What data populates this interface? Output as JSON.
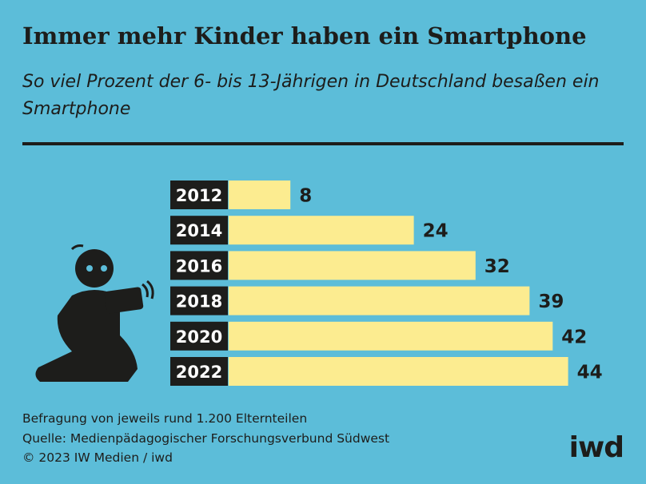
{
  "chart_data": {
    "type": "bar",
    "orientation": "horizontal",
    "title": "Immer mehr Kinder haben ein Smartphone",
    "subtitle": "So viel Prozent der 6- bis 13-Jährigen in Deutschland besaßen ein Smartphone",
    "categories": [
      "2012",
      "2014",
      "2016",
      "2018",
      "2020",
      "2022"
    ],
    "values": [
      8,
      24,
      32,
      39,
      42,
      44
    ],
    "color": "#fcec90"
  },
  "notes": [
    "Befragung von jeweils rund 1.200 Elternteilen",
    "Quelle: Medienpädagogischer Forschungsverbund Südwest",
    "© 2023 IW Medien / iwd"
  ],
  "logo": "iwd"
}
